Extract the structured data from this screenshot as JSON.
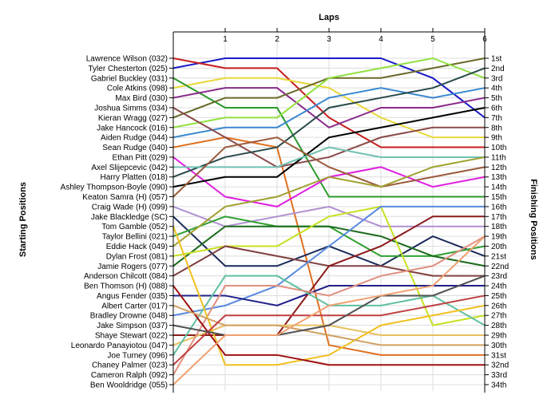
{
  "chart_data": {
    "type": "line",
    "title": "",
    "xlabel": "Laps",
    "ylabel_left": "Starting Positions",
    "ylabel_right": "Finishing Positions",
    "x": [
      0,
      1,
      2,
      3,
      4,
      5,
      6
    ],
    "x_tick_labels": [
      "1",
      "2",
      "3",
      "4",
      "5",
      "6"
    ],
    "ylim": [
      1,
      34
    ],
    "y_inverted": true,
    "grid": true,
    "legend": "none",
    "start_labels": [
      "Lawrence Wilson (032)",
      "Tyler Chesterton (025)",
      "Gabriel Buckley (031)",
      "Cole Atkins (098)",
      "Max Bird (030)",
      "Joshua Simms (034)",
      "Kieran Wragg (027)",
      "Jake Hancock (016)",
      "Aiden Rudge (044)",
      "Sean Rudge (040)",
      "Ethan Pitt (029)",
      "Axel Slijepcevic (042)",
      "Harry Platten (018)",
      "Ashley Thompson-Boyle (090)",
      "Keaton Samra (H) (057)",
      "Craig Wade (H) (099)",
      "Jake Blackledge (SC)",
      "Tom Gamble (052)",
      "Taylor Bellini (021)",
      "Eddie Hack (049)",
      "Dylan Frost (081)",
      "Jamie Rogers (077)",
      "Anderson Chilcott (084)",
      "Ben Thomson (H) (088)",
      "Angus Fender (035)",
      "Albert Carter (017)",
      "Bradley Drowne (048)",
      "Jake Simpson (037)",
      "Shaye Stewart (022)",
      "Leonardo Panayiotou (047)",
      "Joe Turney (096)",
      "Chaney Palmer (023)",
      "Cameron Ralph (092)",
      "Ben Wooldridge (055)"
    ],
    "finish_labels": [
      "1st",
      "2nd",
      "3rd",
      "4th",
      "5th",
      "6th",
      "7th",
      "8th",
      "9th",
      "10th",
      "11th",
      "12th",
      "13th",
      "14th",
      "15th",
      "16th",
      "17th",
      "18th",
      "19th",
      "20th",
      "21st",
      "22nd",
      "23rd",
      "24th",
      "25th",
      "26th",
      "27th",
      "28th",
      "29th",
      "30th",
      "31st",
      "32nd",
      "33rd",
      "34th"
    ],
    "series": [
      {
        "color": "#1a1ac8",
        "positions": [
          2,
          1,
          1,
          1,
          1,
          3,
          7
        ]
      },
      {
        "color": "#c81e1e",
        "positions": [
          1,
          2,
          2,
          7,
          10,
          10,
          10
        ]
      },
      {
        "color": "#e8d838",
        "positions": [
          4,
          3,
          3,
          4,
          7,
          9,
          9
        ]
      },
      {
        "color": "#2a9a2a",
        "positions": [
          3,
          6,
          6,
          15,
          15,
          15,
          15
        ]
      },
      {
        "color": "#8a2a8a",
        "positions": [
          5,
          4,
          4,
          8,
          6,
          6,
          5
        ]
      },
      {
        "color": "#6a6a2a",
        "positions": [
          7,
          5,
          5,
          3,
          3,
          2,
          1
        ]
      },
      {
        "color": "#90e040",
        "positions": [
          8,
          7,
          7,
          3,
          2,
          1,
          3
        ]
      },
      {
        "color": "#3a88d0",
        "positions": [
          9,
          8,
          8,
          5,
          4,
          5,
          4
        ]
      },
      {
        "color": "#e07020",
        "positions": [
          10,
          9,
          10,
          30,
          31,
          31,
          31
        ]
      },
      {
        "color": "#e020e0",
        "positions": [
          11,
          15,
          16,
          13,
          12,
          14,
          13
        ]
      },
      {
        "color": "#8a4a4a",
        "positions": [
          6,
          9,
          12,
          11,
          9,
          8,
          8
        ]
      },
      {
        "color": "#2a4a4a",
        "positions": [
          13,
          11,
          10,
          6,
          5,
          4,
          2
        ]
      },
      {
        "color": "#000000",
        "positions": [
          14,
          13,
          13,
          9,
          8,
          7,
          6
        ]
      },
      {
        "color": "#70c0b0",
        "positions": [
          12,
          12,
          12,
          10,
          11,
          11,
          11
        ]
      },
      {
        "color": "#9a5a3a",
        "positions": [
          15,
          10,
          9,
          12,
          14,
          13,
          12
        ]
      },
      {
        "color": "#b090d0",
        "positions": [
          16,
          18,
          17,
          16,
          18,
          18,
          18
        ]
      },
      {
        "color": "#1a2a5a",
        "positions": [
          17,
          22,
          22,
          20,
          22,
          19,
          21
        ]
      },
      {
        "color": "#30a030",
        "positions": [
          19,
          17,
          18,
          18,
          21,
          21,
          20
        ]
      },
      {
        "color": "#a0a030",
        "positions": [
          20,
          16,
          15,
          13,
          14,
          12,
          11
        ]
      },
      {
        "color": "#1a6a1a",
        "positions": [
          22,
          18,
          18,
          18,
          19,
          21,
          22
        ]
      },
      {
        "color": "#c8e020",
        "positions": [
          21,
          20,
          20,
          17,
          16,
          28,
          27
        ]
      },
      {
        "color": "#804040",
        "positions": [
          23,
          20,
          21,
          22,
          22,
          23,
          23
        ]
      },
      {
        "color": "#5a8ae0",
        "positions": [
          27,
          26,
          24,
          20,
          16,
          16,
          16
        ]
      },
      {
        "color": "#20208a",
        "positions": [
          25,
          25,
          26,
          24,
          24,
          24,
          24
        ]
      },
      {
        "color": "#8a1a1a",
        "positions": [
          29,
          29,
          29,
          22,
          20,
          17,
          17
        ]
      },
      {
        "color": "#e8c060",
        "positions": [
          30,
          28,
          28,
          28,
          29,
          29,
          29
        ]
      },
      {
        "color": "#60c0a0",
        "positions": [
          31,
          23,
          23,
          26,
          26,
          25,
          28
        ]
      },
      {
        "color": "#e09080",
        "positions": [
          33,
          24,
          24,
          25,
          23,
          22,
          19
        ]
      },
      {
        "color": "#f0c020",
        "positions": [
          18,
          32,
          32,
          31,
          28,
          27,
          26
        ]
      },
      {
        "color": "#a01010",
        "positions": [
          24,
          31,
          31,
          32,
          32,
          32,
          32
        ]
      },
      {
        "color": "#d0a060",
        "positions": [
          26,
          28,
          28,
          29,
          30,
          30,
          30
        ]
      },
      {
        "color": "#c04040",
        "positions": [
          32,
          27,
          27,
          27,
          27,
          26,
          25
        ]
      },
      {
        "color": "#505050",
        "positions": [
          28,
          29,
          29,
          28,
          25,
          25,
          23
        ]
      },
      {
        "color": "#f0a070",
        "positions": [
          34,
          29,
          29,
          26,
          25,
          24,
          19
        ]
      }
    ]
  }
}
